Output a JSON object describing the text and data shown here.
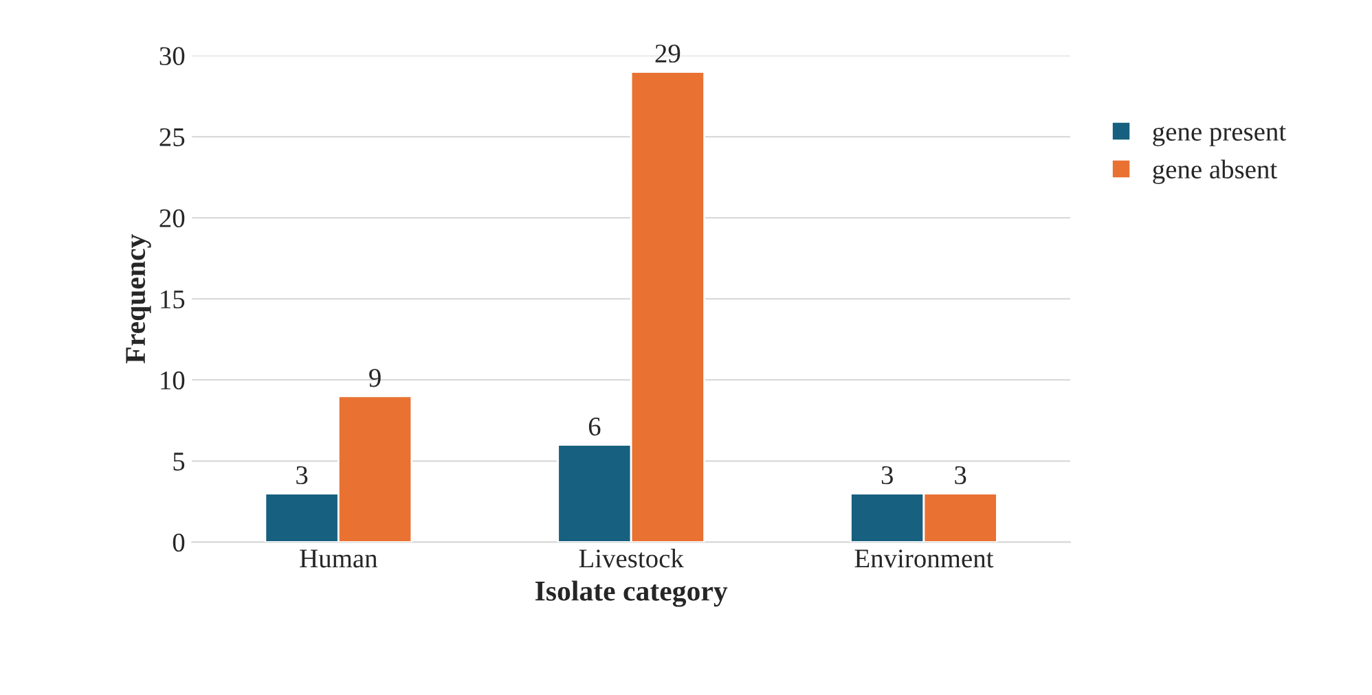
{
  "chart_data": {
    "type": "bar",
    "xlabel": "Isolate category",
    "ylabel": "Frequency",
    "categories": [
      "Human",
      "Livestock",
      "Environment"
    ],
    "series": [
      {
        "name": "gene present",
        "color": "#17607f",
        "values": [
          3,
          6,
          3
        ]
      },
      {
        "name": "gene absent",
        "color": "#e97132",
        "values": [
          9,
          29,
          3
        ]
      }
    ],
    "ylim": [
      0,
      30
    ],
    "yticks": [
      0,
      5,
      10,
      15,
      20,
      25,
      30
    ],
    "grid": "y",
    "legend": "right",
    "data_labels": true
  }
}
